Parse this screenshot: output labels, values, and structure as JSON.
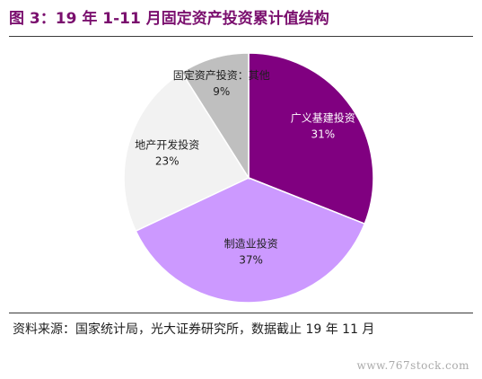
{
  "header": {
    "title": "图 3：19 年 1-11 月固定资产投资累计值结构"
  },
  "footer": {
    "source": "资料来源：国家统计局，光大证券研究所，数据截止 19 年 11 月",
    "watermark": "www.767stock.com"
  },
  "chart_data": {
    "type": "pie",
    "title": "图 3：19 年 1-11 月固定资产投资累计值结构",
    "slices": [
      {
        "label": "广义基建投资",
        "value": 31,
        "display": "31%",
        "color": "#800080",
        "text_color": "#ffffff"
      },
      {
        "label": "制造业投资",
        "value": 37,
        "display": "37%",
        "color": "#cc99ff",
        "text_color": "#1e1e1e"
      },
      {
        "label": "地产开发投资",
        "value": 23,
        "display": "23%",
        "color": "#f2f2f2",
        "text_color": "#1e1e1e"
      },
      {
        "label": "固定资产投资：其他",
        "value": 9,
        "display": "9%",
        "color": "#bfbfbf",
        "text_color": "#1e1e1e"
      }
    ],
    "start_angle": "12 o'clock",
    "direction": "clockwise",
    "legend": "none"
  }
}
